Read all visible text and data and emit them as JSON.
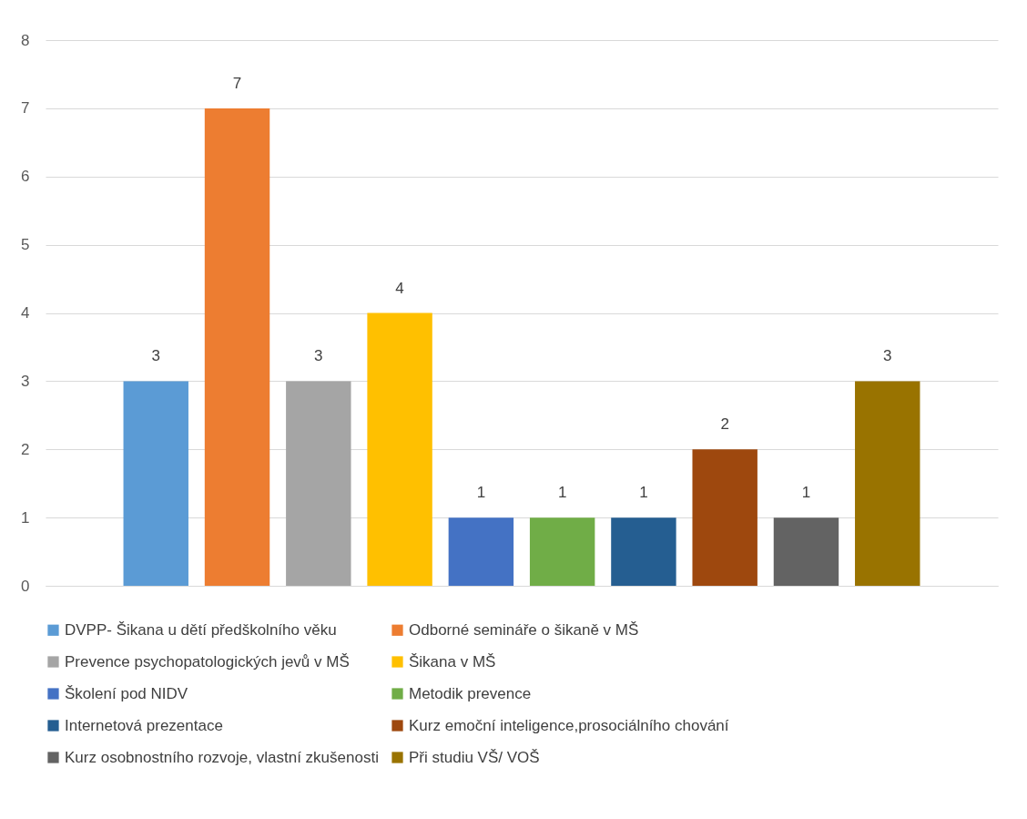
{
  "chart_data": {
    "type": "bar",
    "categories": [
      null
    ],
    "series": [
      {
        "name": "DVPP- Šikana u dětí předškolního věku",
        "color": "#5b9bd5",
        "values": [
          3
        ]
      },
      {
        "name": "Odborné semináře o šikaně v MŠ",
        "color": "#ed7d31",
        "values": [
          7
        ]
      },
      {
        "name": "Prevence psychopatologických jevů v MŠ",
        "color": "#a5a5a5",
        "values": [
          3
        ]
      },
      {
        "name": "Šikana v MŠ",
        "color": "#ffc000",
        "values": [
          4
        ]
      },
      {
        "name": "Školení pod NIDV",
        "color": "#4472c4",
        "values": [
          1
        ]
      },
      {
        "name": "Metodik prevence",
        "color": "#70ad47",
        "values": [
          1
        ]
      },
      {
        "name": "Internetová prezentace",
        "color": "#255e91",
        "values": [
          1
        ]
      },
      {
        "name": "Kurz emoční inteligence,prosociálního chování",
        "color": "#9e480e",
        "values": [
          2
        ]
      },
      {
        "name": "Kurz osobnostního rozvoje, vlastní zkušenosti",
        "color": "#636363",
        "values": [
          1
        ]
      },
      {
        "name": "Při studiu VŠ/ VOŠ",
        "color": "#997300",
        "values": [
          3
        ]
      }
    ],
    "ylim": [
      0,
      8
    ],
    "yticks": [
      0,
      1,
      2,
      3,
      4,
      5,
      6,
      7,
      8
    ],
    "grid": "y",
    "data_labels": true,
    "legend": "bottom"
  }
}
